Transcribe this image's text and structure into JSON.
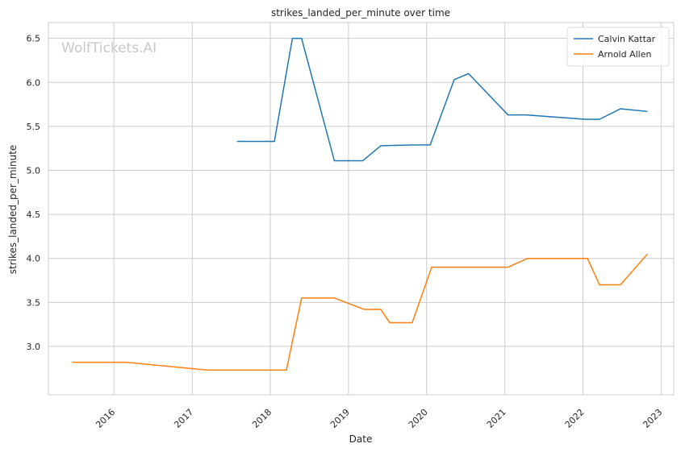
{
  "chart_data": {
    "type": "line",
    "title": "strikes_landed_per_minute over time",
    "xlabel": "Date",
    "ylabel": "strikes_landed_per_minute",
    "watermark": "WolfTickets.AI",
    "xlim": [
      "2015-03-01",
      "2023-03-01"
    ],
    "ylim": [
      2.45,
      6.68
    ],
    "x_ticks": [
      {
        "date": "2016-01-01",
        "label": "2016"
      },
      {
        "date": "2017-01-01",
        "label": "2017"
      },
      {
        "date": "2018-01-01",
        "label": "2018"
      },
      {
        "date": "2019-01-01",
        "label": "2019"
      },
      {
        "date": "2020-01-01",
        "label": "2020"
      },
      {
        "date": "2021-01-01",
        "label": "2021"
      },
      {
        "date": "2022-01-01",
        "label": "2022"
      },
      {
        "date": "2023-01-01",
        "label": "2023"
      }
    ],
    "y_ticks": [
      {
        "value": 3.0,
        "label": "3.0"
      },
      {
        "value": 3.5,
        "label": "3.5"
      },
      {
        "value": 4.0,
        "label": "4.0"
      },
      {
        "value": 4.5,
        "label": "4.5"
      },
      {
        "value": 5.0,
        "label": "5.0"
      },
      {
        "value": 5.5,
        "label": "5.5"
      },
      {
        "value": 6.0,
        "label": "6.0"
      },
      {
        "value": 6.5,
        "label": "6.5"
      }
    ],
    "grid": true,
    "legend_position": "top-right",
    "series": [
      {
        "name": "Calvin Kattar",
        "color": "#1f77b4",
        "points": [
          {
            "x": "2017-07-29",
            "y": 5.33
          },
          {
            "x": "2018-01-20",
            "y": 5.33
          },
          {
            "x": "2018-04-14",
            "y": 6.5
          },
          {
            "x": "2018-05-27",
            "y": 6.5
          },
          {
            "x": "2018-10-27",
            "y": 5.11
          },
          {
            "x": "2019-03-09",
            "y": 5.11
          },
          {
            "x": "2019-06-01",
            "y": 5.28
          },
          {
            "x": "2019-11-09",
            "y": 5.29
          },
          {
            "x": "2020-01-18",
            "y": 5.29
          },
          {
            "x": "2020-05-09",
            "y": 6.03
          },
          {
            "x": "2020-07-15",
            "y": 6.1
          },
          {
            "x": "2021-01-16",
            "y": 5.63
          },
          {
            "x": "2021-04-10",
            "y": 5.63
          },
          {
            "x": "2022-01-15",
            "y": 5.58
          },
          {
            "x": "2022-03-19",
            "y": 5.58
          },
          {
            "x": "2022-06-25",
            "y": 5.7
          },
          {
            "x": "2022-10-29",
            "y": 5.67
          }
        ]
      },
      {
        "name": "Arnold Allen",
        "color": "#ff7f0e",
        "points": [
          {
            "x": "2015-06-20",
            "y": 2.82
          },
          {
            "x": "2016-02-27",
            "y": 2.82
          },
          {
            "x": "2017-03-18",
            "y": 2.73
          },
          {
            "x": "2018-03-17",
            "y": 2.73
          },
          {
            "x": "2018-05-27",
            "y": 3.55
          },
          {
            "x": "2018-10-27",
            "y": 3.55
          },
          {
            "x": "2019-03-16",
            "y": 3.42
          },
          {
            "x": "2019-06-01",
            "y": 3.42
          },
          {
            "x": "2019-07-13",
            "y": 3.27
          },
          {
            "x": "2019-10-26",
            "y": 3.27
          },
          {
            "x": "2020-01-25",
            "y": 3.9
          },
          {
            "x": "2021-01-16",
            "y": 3.9
          },
          {
            "x": "2021-04-17",
            "y": 4.0
          },
          {
            "x": "2022-01-22",
            "y": 4.0
          },
          {
            "x": "2022-03-19",
            "y": 3.7
          },
          {
            "x": "2022-06-25",
            "y": 3.7
          },
          {
            "x": "2022-10-29",
            "y": 4.05
          }
        ]
      }
    ]
  }
}
